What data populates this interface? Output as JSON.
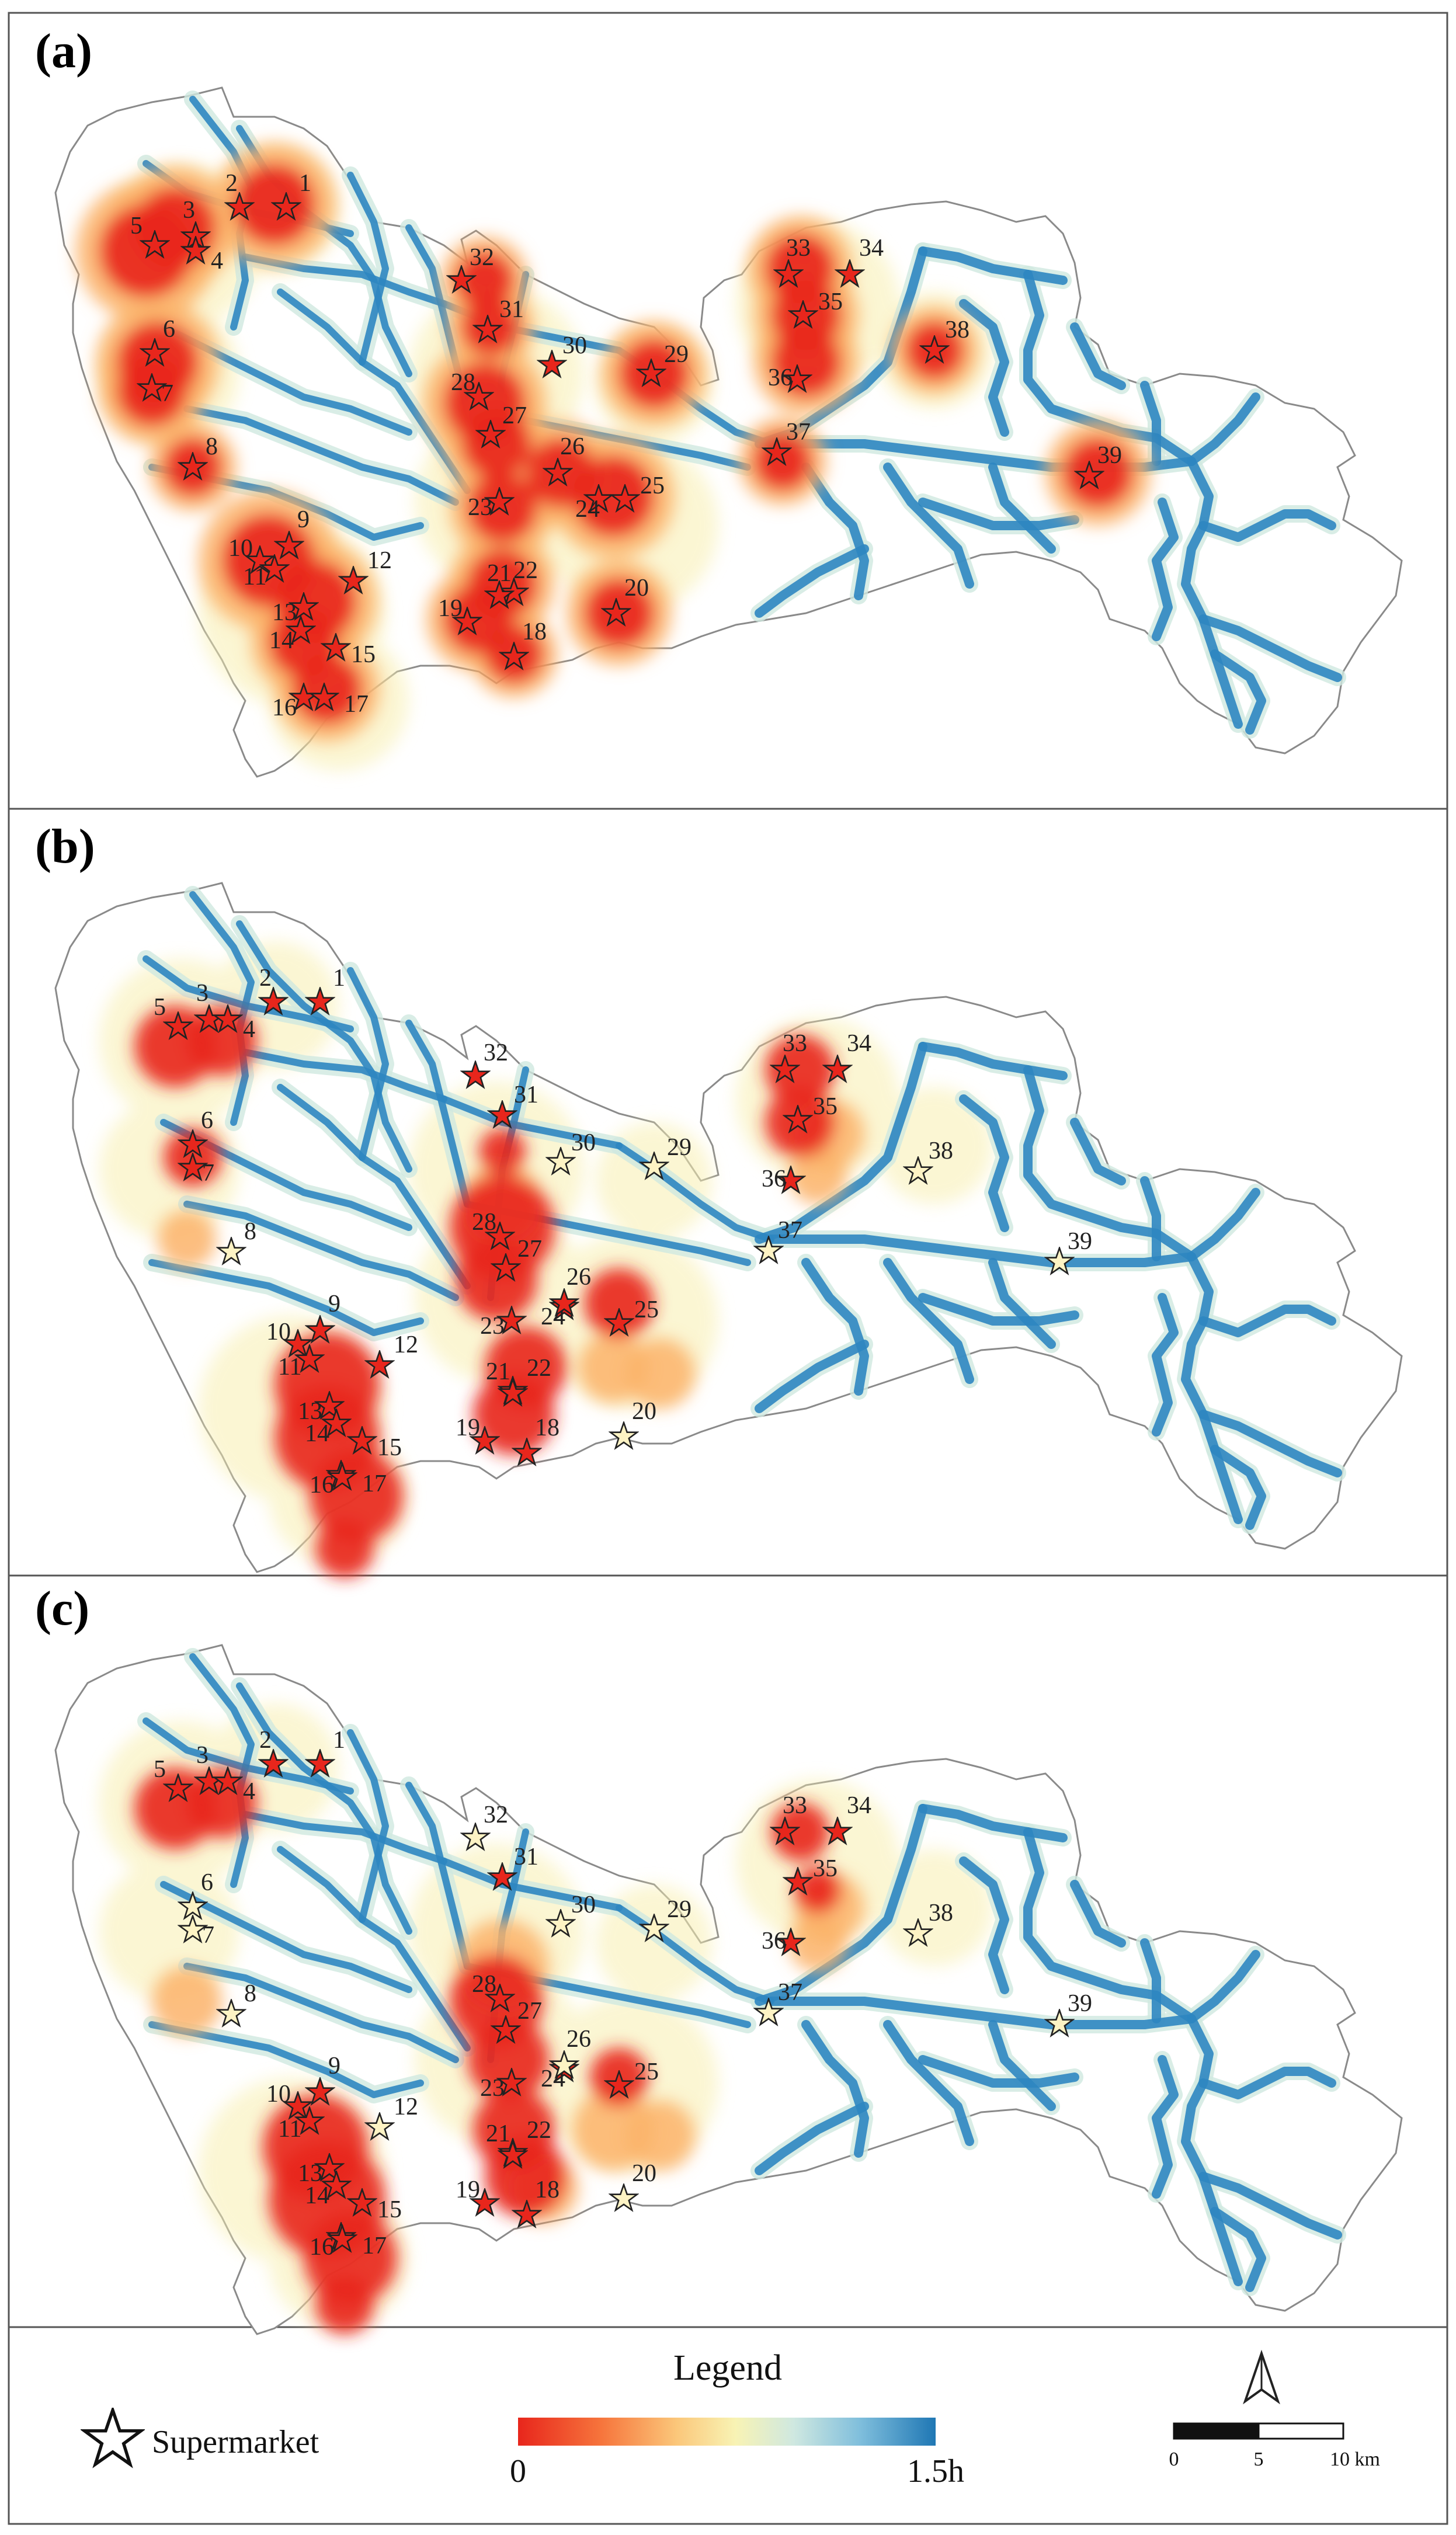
{
  "panels": [
    {
      "id": "a",
      "label": "(a)",
      "dim_sites": []
    },
    {
      "id": "b",
      "label": "(b)",
      "dim_sites": [
        "8",
        "20",
        "29",
        "30",
        "37",
        "38",
        "39"
      ]
    },
    {
      "id": "c",
      "label": "(c)",
      "dim_sites": [
        "6",
        "7",
        "8",
        "12",
        "20",
        "26",
        "29",
        "30",
        "32",
        "37",
        "38",
        "39"
      ]
    }
  ],
  "sites": [
    "1",
    "2",
    "3",
    "4",
    "5",
    "6",
    "7",
    "8",
    "9",
    "10",
    "11",
    "12",
    "13",
    "14",
    "15",
    "16",
    "17",
    "18",
    "19",
    "20",
    "21",
    "22",
    "23",
    "24",
    "25",
    "26",
    "27",
    "28",
    "29",
    "30",
    "31",
    "32",
    "33",
    "34",
    "35",
    "36",
    "37",
    "38",
    "39"
  ],
  "legend": {
    "title": "Legend",
    "supermarket_label": "Supermarket",
    "colorbar_min": "0",
    "colorbar_max": "1.5h",
    "colors": [
      "#e8261c",
      "#f6753c",
      "#fbc77a",
      "#f8f3b4",
      "#cfe8e0",
      "#7fbedc",
      "#1f77b4"
    ],
    "scale_ticks": [
      "0",
      "5",
      "10  km"
    ]
  },
  "colors": {
    "road_blue": "#2e86c1",
    "hot_red": "#e8261c",
    "boundary": "#8a8a8a"
  }
}
